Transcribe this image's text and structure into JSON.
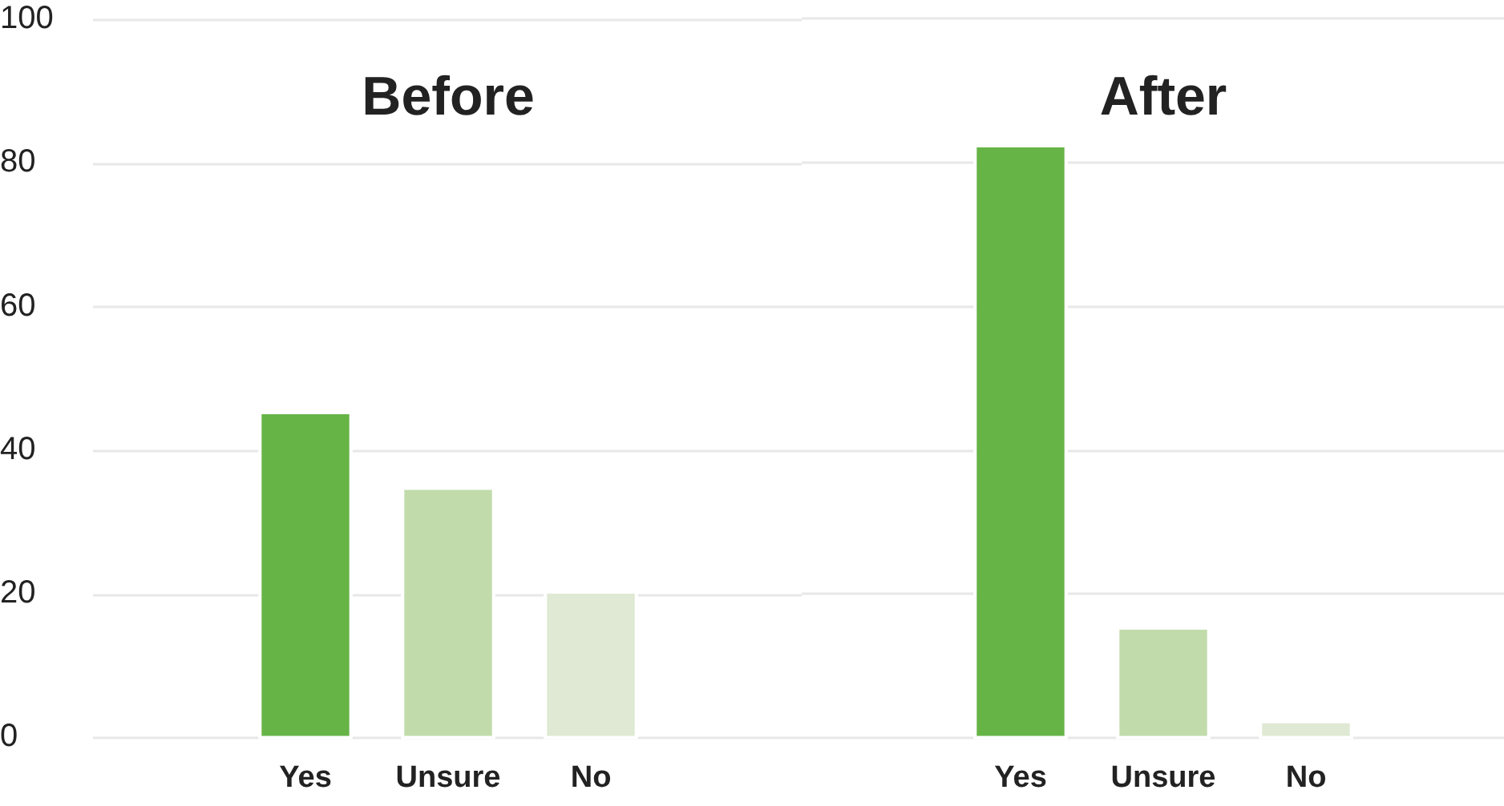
{
  "chart_data": [
    {
      "type": "bar",
      "title": "Before",
      "categories": [
        "Yes",
        "Unsure",
        "No"
      ],
      "values": [
        45,
        34.5,
        20
      ],
      "colors": [
        "#66b446",
        "#c1dcaa",
        "#dfe9d3"
      ],
      "ylim": [
        0,
        100
      ],
      "yticks": [
        0,
        20,
        40,
        60,
        80,
        100
      ],
      "grid": "y"
    },
    {
      "type": "bar",
      "title": "After",
      "categories": [
        "Yes",
        "Unsure",
        "No"
      ],
      "values": [
        82,
        15,
        2
      ],
      "colors": [
        "#66b446",
        "#c1dcaa",
        "#dfe9d3"
      ],
      "ylim": [
        0,
        100
      ],
      "yticks": [
        0,
        20,
        40,
        60,
        80,
        100
      ],
      "grid": "y",
      "tick_labels": "x"
    }
  ]
}
